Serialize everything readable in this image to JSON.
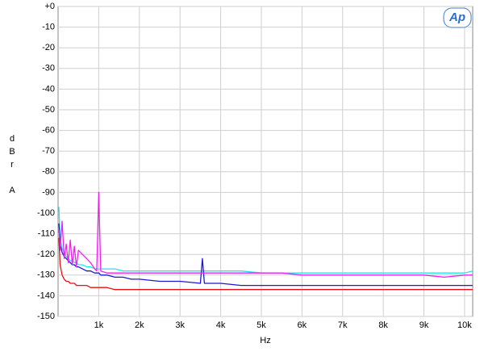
{
  "chart_data": {
    "type": "line",
    "logo": "Ap",
    "xlabel": "Hz",
    "ylabel": "dBr A",
    "xlim": [
      0,
      10200
    ],
    "ylim": [
      -150,
      0
    ],
    "grid": true,
    "xticks": [
      {
        "value": 1000,
        "label": "1k"
      },
      {
        "value": 2000,
        "label": "2k"
      },
      {
        "value": 3000,
        "label": "3k"
      },
      {
        "value": 4000,
        "label": "4k"
      },
      {
        "value": 5000,
        "label": "5k"
      },
      {
        "value": 6000,
        "label": "6k"
      },
      {
        "value": 7000,
        "label": "7k"
      },
      {
        "value": 8000,
        "label": "8k"
      },
      {
        "value": 9000,
        "label": "9k"
      },
      {
        "value": 10000,
        "label": "10k"
      }
    ],
    "yticks": [
      {
        "value": 0,
        "label": "+0"
      },
      -10,
      -20,
      -30,
      -40,
      -50,
      -60,
      -70,
      -80,
      -90,
      -100,
      -110,
      -120,
      -130,
      -140,
      -150
    ],
    "x": [
      20,
      50,
      100,
      150,
      200,
      250,
      300,
      350,
      400,
      450,
      500,
      600,
      700,
      800,
      900,
      950,
      1000,
      1050,
      1200,
      1400,
      1600,
      1800,
      2000,
      2500,
      3000,
      3500,
      3550,
      3600,
      4000,
      4500,
      5000,
      5500,
      6000,
      6500,
      7000,
      7500,
      8000,
      8500,
      9000,
      9500,
      10000,
      10200
    ],
    "series": [
      {
        "color": "#22e6f0",
        "values": [
          -97,
          -112,
          -117,
          -119,
          -121,
          -122,
          -123,
          -123,
          -124,
          -124,
          -125,
          -125,
          -126,
          -126,
          -127,
          -127,
          -127,
          -127,
          -127,
          -127,
          -128,
          -128,
          -128,
          -128,
          -128,
          -128,
          -128,
          -128,
          -128,
          -128,
          -129,
          -129,
          -129,
          -129,
          -129,
          -129,
          -129,
          -129,
          -129,
          -129,
          -129,
          -128
        ]
      },
      {
        "color": "#1a1ad0",
        "values": [
          -105,
          -115,
          -119,
          -121,
          -122,
          -123,
          -124,
          -125,
          -125,
          -126,
          -126,
          -127,
          -128,
          -128,
          -129,
          -129,
          -129,
          -130,
          -130,
          -131,
          -131,
          -132,
          -132,
          -133,
          -133,
          -134,
          -122,
          -134,
          -134,
          -135,
          -135,
          -135,
          -135,
          -135,
          -135,
          -135,
          -135,
          -135,
          -135,
          -135,
          -135,
          -135
        ]
      },
      {
        "color": "#f020f0",
        "values": [
          -108,
          -118,
          -104,
          -122,
          -115,
          -124,
          -113,
          -125,
          -116,
          -126,
          -118,
          -120,
          -122,
          -124,
          -127,
          -128,
          -90,
          -128,
          -129,
          -129,
          -129,
          -129,
          -129,
          -129,
          -129,
          -129,
          -129,
          -129,
          -129,
          -129,
          -129,
          -129,
          -130,
          -130,
          -130,
          -130,
          -130,
          -130,
          -130,
          -131,
          -130,
          -130
        ]
      },
      {
        "color": "#e81010",
        "values": [
          -112,
          -125,
          -130,
          -132,
          -133,
          -133,
          -134,
          -134,
          -134,
          -135,
          -135,
          -135,
          -135,
          -136,
          -136,
          -136,
          -136,
          -136,
          -136,
          -137,
          -137,
          -137,
          -137,
          -137,
          -137,
          -137,
          -137,
          -137,
          -137,
          -137,
          -137,
          -137,
          -137,
          -137,
          -137,
          -137,
          -137,
          -137,
          -137,
          -137,
          -137,
          -137
        ]
      }
    ]
  }
}
